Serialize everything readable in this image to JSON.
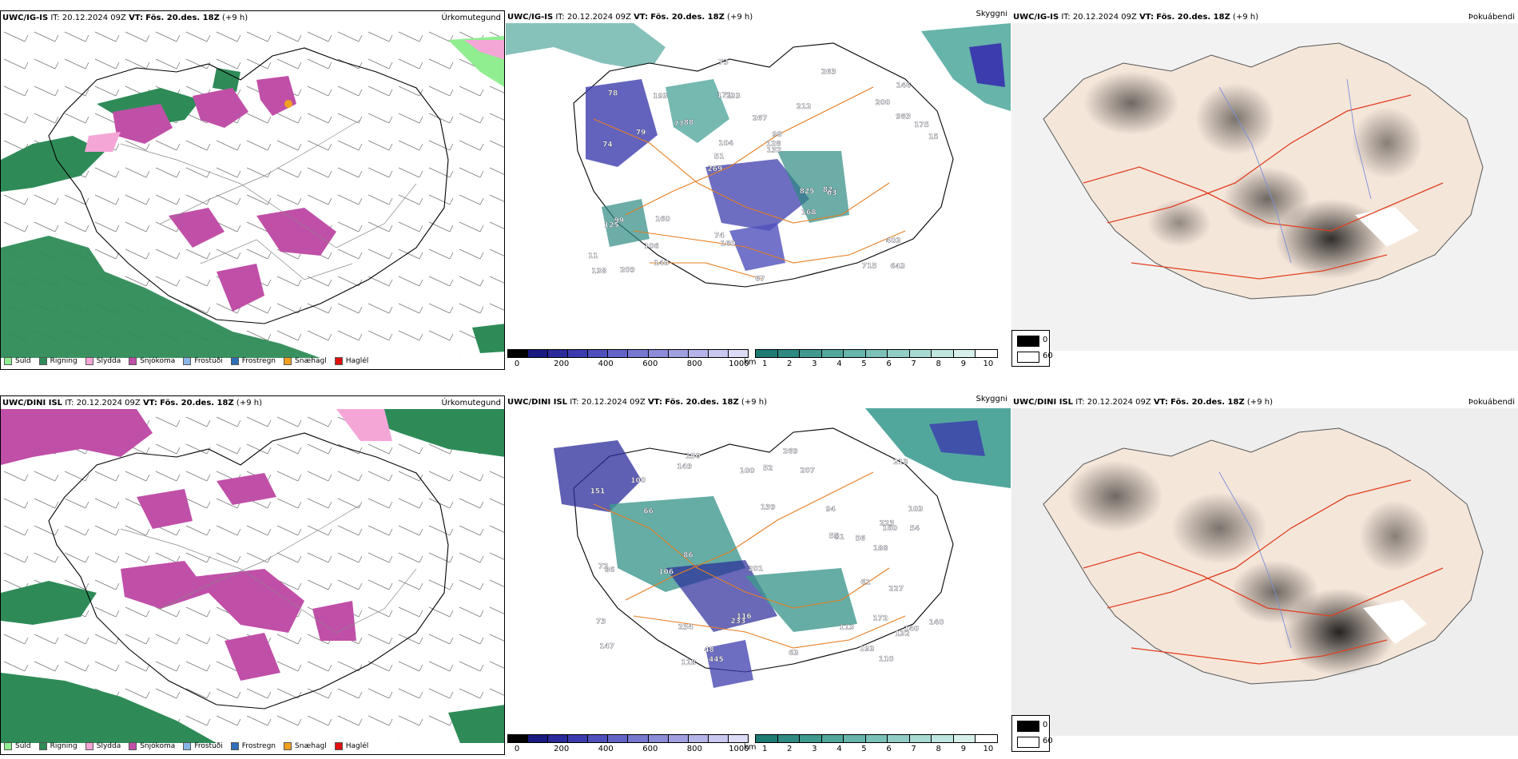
{
  "rows": [
    {
      "model": "UWC/IG-IS",
      "it": "IT: 20.12.2024 09Z",
      "vt_label": "VT:",
      "vt_value": "Fös. 20.des. 18Z",
      "lead": "(+9 h)",
      "panels": [
        {
          "title": "Úrkomutegund"
        },
        {
          "title": "Skyggni"
        },
        {
          "title": "Þokuábendi"
        }
      ]
    },
    {
      "model": "UWC/DINI ISL",
      "it": "IT: 20.12.2024 09Z",
      "vt_label": "VT:",
      "vt_value": "Fös. 20.des. 18Z",
      "lead": "(+9 h)",
      "panels": [
        {
          "title": "Úrkomutegund"
        },
        {
          "title": "Skyggni"
        },
        {
          "title": "Þokuábendi"
        }
      ]
    }
  ],
  "precip_legend": [
    {
      "label": "Súld",
      "color": "#90ee90"
    },
    {
      "label": "Rigning",
      "color": "#2e8b57"
    },
    {
      "label": "Slydda",
      "color": "#f4a6d7"
    },
    {
      "label": "Snjókoma",
      "color": "#c04fa8"
    },
    {
      "label": "Frostúði",
      "color": "#87b5e8"
    },
    {
      "label": "Frostregn",
      "color": "#2f6fb8"
    },
    {
      "label": "Snæhagl",
      "color": "#f0a020"
    },
    {
      "label": "Haglél",
      "color": "#e01010"
    }
  ],
  "vis_m_bar": {
    "unit": "m",
    "ticks": [
      "0",
      "200",
      "400",
      "600",
      "800",
      "1000"
    ],
    "colors": [
      "#000000",
      "#1a1a80",
      "#2a2a9a",
      "#3c3cae",
      "#5050bd",
      "#6464c8",
      "#7878d0",
      "#8c8cd8",
      "#a0a0e0",
      "#b4b4e8",
      "#c8c8f0",
      "#dcdcf6"
    ]
  },
  "vis_km_bar": {
    "unit": "km",
    "ticks": [
      "1",
      "2",
      "3",
      "4",
      "5",
      "6",
      "7",
      "8",
      "9",
      "10"
    ],
    "colors": [
      "#1e7b74",
      "#2e8a82",
      "#3f998f",
      "#52a79d",
      "#66b4aa",
      "#7bc1b8",
      "#91cdc5",
      "#a8d9d2",
      "#c0e5e0",
      "#d8f0ec",
      "#ffffff"
    ]
  },
  "fog_key": {
    "low": "0",
    "high": "60"
  },
  "vis_labels_top": [
    "643",
    "74",
    "146",
    "269",
    "212",
    "209",
    "171",
    "267",
    "99",
    "88",
    "11",
    "106",
    "233",
    "98",
    "63",
    "78",
    "73",
    "15",
    "825",
    "983",
    "51",
    "74",
    "104",
    "193",
    "263",
    "160",
    "715",
    "403",
    "82",
    "67",
    "77",
    "79",
    "168",
    "140",
    "175",
    "128",
    "138",
    "160",
    "132",
    "125",
    "200"
  ],
  "vis_labels_bottom": [
    "172",
    "103",
    "140",
    "139",
    "147",
    "150",
    "223",
    "234",
    "213",
    "66",
    "54",
    "151",
    "188",
    "445",
    "73",
    "100",
    "132",
    "149",
    "116",
    "160",
    "72",
    "86",
    "63",
    "55",
    "48",
    "233",
    "269",
    "207",
    "94",
    "140",
    "106",
    "113",
    "118",
    "201",
    "227",
    "193",
    "81",
    "100",
    "110",
    "86",
    "61",
    "56",
    "52"
  ]
}
